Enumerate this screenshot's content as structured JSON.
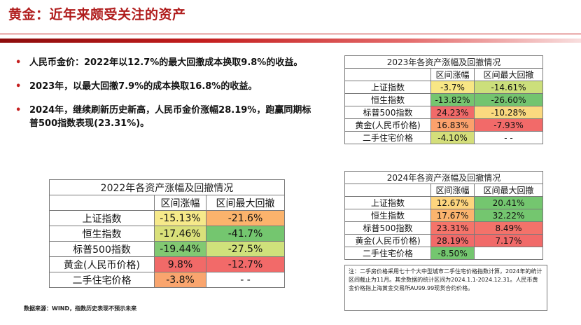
{
  "title": "黄金：近年来颇受关注的资产",
  "bullets": [
    "人民币金价：2022年以12.7%的最大回撤成本换取9.8%的收益。",
    "2023年，以最大回撤7.9%的成本换取16.8%的收益。",
    "2024年，继续刷新历史新高，人民币金价涨幅28.19%，跑赢同期标普500指数表现(23.31%)。"
  ],
  "table_2022": {
    "caption": "2022年各资产涨幅及回撤情况",
    "col1": "区间涨幅",
    "col2": "区间最大回撤",
    "rows": [
      {
        "name": "上证指数",
        "gain": "-15.13%",
        "dd": "-21.6%",
        "gain_color": "#f6e98a",
        "dd_color": "#fbb36c"
      },
      {
        "name": "恒生指数",
        "gain": "-17.46%",
        "dd": "-41.7%",
        "gain_color": "#d9e07a",
        "dd_color": "#74c66f"
      },
      {
        "name": "标普500指数",
        "gain": "-19.44%",
        "dd": "-27.5%",
        "gain_color": "#82c972",
        "dd_color": "#cfe17b"
      },
      {
        "name": "黄金(人民币价格)",
        "gain": "9.8%",
        "dd": "-12.7%",
        "gain_color": "#f16a68",
        "dd_color": "#f26a69"
      },
      {
        "name": "二手住宅价格",
        "gain": "-3.8%",
        "dd": "- -",
        "gain_color": "#f9a56e",
        "dd_color": "#ffffff"
      }
    ]
  },
  "table_2023": {
    "caption": "2023年各资产涨幅及回撤情况",
    "col1": "区间涨幅",
    "col2": "区间最大回撤",
    "rows": [
      {
        "name": "上证指数",
        "gain": "-3.7%",
        "dd": "-14.61%",
        "gain_color": "#f8e685",
        "dd_color": "#ccdf7b"
      },
      {
        "name": "恒生指数",
        "gain": "-13.82%",
        "dd": "-26.60%",
        "gain_color": "#76c56f",
        "dd_color": "#73c46f"
      },
      {
        "name": "标普500指数",
        "gain": "24.23%",
        "dd": "-10.28%",
        "gain_color": "#f16a69",
        "dd_color": "#fbd97f"
      },
      {
        "name": "黄金(人民币价格)",
        "gain": "16.83%",
        "dd": "-7.93%",
        "gain_color": "#fba16c",
        "dd_color": "#f26a69"
      },
      {
        "name": "二手住宅价格",
        "gain": "-4.10%",
        "dd": "- -",
        "gain_color": "#d4de7a",
        "dd_color": "#ffffff"
      }
    ]
  },
  "table_2024": {
    "caption": "2024年各资产涨幅及回撤情况",
    "col1": "区间涨幅",
    "col2": "区间最大回撤",
    "rows": [
      {
        "name": "上证指数",
        "gain": "12.67%",
        "dd": "20.41%",
        "gain_color": "#fdd57e",
        "dd_color": "#74c66f"
      },
      {
        "name": "恒生指数",
        "gain": "17.67%",
        "dd": "32.22%",
        "gain_color": "#fbb46e",
        "dd_color": "#74c66f"
      },
      {
        "name": "标普500指数",
        "gain": "23.31%",
        "dd": "8.49%",
        "gain_color": "#f5746a",
        "dd_color": "#f3726a"
      },
      {
        "name": "黄金(人民币价格)",
        "gain": "28.19%",
        "dd": "7.17%",
        "gain_color": "#f16a69",
        "dd_color": "#f16a69"
      },
      {
        "name": "二手住宅价格",
        "gain": "-8.50%",
        "dd": "",
        "gain_color": "#74c66f",
        "dd_color": "#ffffff"
      }
    ]
  },
  "note": "注：二手房价格采用七十个大中型城市二手住宅价格指数计算，2024年的统计区间截止为11月。其余数据的统计区间为2024.1.1-2024.12.31。人民币黄金价格指上海黄金交易所AU99.99现货合约价格。",
  "source": "数据来源：WIND，指数历史表现不预示未来"
}
